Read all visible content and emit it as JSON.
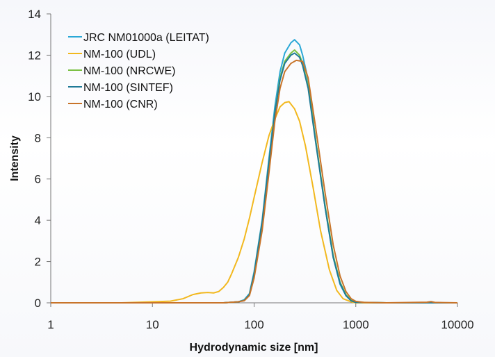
{
  "chart_data": {
    "type": "line",
    "xlabel": "Hydrodynamic size [nm]",
    "ylabel": "Intensity",
    "xscale": "log",
    "xlim": [
      1,
      10000
    ],
    "ylim": [
      0,
      14
    ],
    "x_ticks": [
      1,
      10,
      100,
      1000,
      10000
    ],
    "x_tick_labels": [
      "1",
      "10",
      "100",
      "1000",
      "10000"
    ],
    "y_ticks": [
      0,
      2,
      4,
      6,
      8,
      10,
      12,
      14
    ],
    "y_tick_labels": [
      "0",
      "2",
      "4",
      "6",
      "8",
      "10",
      "12",
      "14"
    ],
    "grid": false,
    "legend_position": "top-left",
    "series": [
      {
        "name": "JRC NM01000a (LEITAT)",
        "color": "#2aa8d6",
        "points": [
          [
            1,
            0
          ],
          [
            10,
            0
          ],
          [
            50,
            0
          ],
          [
            70,
            0.05
          ],
          [
            80,
            0.15
          ],
          [
            90,
            0.45
          ],
          [
            100,
            1.5
          ],
          [
            120,
            4.0
          ],
          [
            140,
            7.0
          ],
          [
            160,
            9.5
          ],
          [
            180,
            11.2
          ],
          [
            200,
            12.1
          ],
          [
            230,
            12.6
          ],
          [
            250,
            12.75
          ],
          [
            280,
            12.5
          ],
          [
            300,
            12.0
          ],
          [
            340,
            10.8
          ],
          [
            400,
            8.0
          ],
          [
            500,
            4.6
          ],
          [
            600,
            2.2
          ],
          [
            700,
            0.9
          ],
          [
            800,
            0.35
          ],
          [
            900,
            0.1
          ],
          [
            1000,
            0.02
          ],
          [
            2000,
            0
          ],
          [
            5000,
            0
          ],
          [
            5500,
            0.05
          ],
          [
            6000,
            0
          ],
          [
            10000,
            0
          ]
        ]
      },
      {
        "name": "NM-100 (UDL)",
        "color": "#f2b81e",
        "points": [
          [
            1,
            0
          ],
          [
            5,
            0
          ],
          [
            10,
            0.05
          ],
          [
            15,
            0.08
          ],
          [
            20,
            0.2
          ],
          [
            25,
            0.4
          ],
          [
            30,
            0.48
          ],
          [
            35,
            0.5
          ],
          [
            40,
            0.48
          ],
          [
            45,
            0.55
          ],
          [
            50,
            0.75
          ],
          [
            55,
            1.0
          ],
          [
            60,
            1.4
          ],
          [
            70,
            2.2
          ],
          [
            80,
            3.1
          ],
          [
            90,
            4.1
          ],
          [
            100,
            5.1
          ],
          [
            120,
            6.8
          ],
          [
            140,
            8.1
          ],
          [
            160,
            8.9
          ],
          [
            180,
            9.5
          ],
          [
            200,
            9.7
          ],
          [
            220,
            9.75
          ],
          [
            250,
            9.4
          ],
          [
            280,
            8.8
          ],
          [
            320,
            7.6
          ],
          [
            380,
            5.6
          ],
          [
            450,
            3.5
          ],
          [
            550,
            1.6
          ],
          [
            650,
            0.6
          ],
          [
            750,
            0.2
          ],
          [
            900,
            0.05
          ],
          [
            1000,
            0
          ],
          [
            10000,
            0
          ]
        ]
      },
      {
        "name": "NM-100 (NRCWE)",
        "color": "#7bc043",
        "points": [
          [
            1,
            0
          ],
          [
            10,
            0
          ],
          [
            50,
            0
          ],
          [
            70,
            0.05
          ],
          [
            80,
            0.12
          ],
          [
            90,
            0.4
          ],
          [
            100,
            1.4
          ],
          [
            120,
            3.9
          ],
          [
            140,
            6.8
          ],
          [
            160,
            9.2
          ],
          [
            180,
            10.9
          ],
          [
            200,
            11.7
          ],
          [
            230,
            12.1
          ],
          [
            250,
            12.25
          ],
          [
            280,
            12.0
          ],
          [
            300,
            11.6
          ],
          [
            340,
            10.5
          ],
          [
            400,
            8.0
          ],
          [
            500,
            4.7
          ],
          [
            600,
            2.3
          ],
          [
            700,
            1.0
          ],
          [
            800,
            0.4
          ],
          [
            900,
            0.12
          ],
          [
            1000,
            0.03
          ],
          [
            2000,
            0
          ],
          [
            10000,
            0
          ]
        ]
      },
      {
        "name": "NM-100 (SINTEF)",
        "color": "#1f7a96",
        "points": [
          [
            1,
            0
          ],
          [
            10,
            0
          ],
          [
            50,
            0
          ],
          [
            70,
            0.05
          ],
          [
            80,
            0.12
          ],
          [
            90,
            0.4
          ],
          [
            100,
            1.4
          ],
          [
            120,
            3.9
          ],
          [
            140,
            6.8
          ],
          [
            160,
            9.2
          ],
          [
            180,
            10.8
          ],
          [
            200,
            11.6
          ],
          [
            230,
            12.0
          ],
          [
            250,
            12.1
          ],
          [
            280,
            11.9
          ],
          [
            300,
            11.5
          ],
          [
            340,
            10.4
          ],
          [
            400,
            7.9
          ],
          [
            500,
            4.6
          ],
          [
            600,
            2.2
          ],
          [
            700,
            0.95
          ],
          [
            800,
            0.35
          ],
          [
            900,
            0.1
          ],
          [
            1000,
            0.02
          ],
          [
            2000,
            0
          ],
          [
            10000,
            0
          ]
        ]
      },
      {
        "name": "NM-100 (CNR)",
        "color": "#c8742a",
        "points": [
          [
            1,
            0
          ],
          [
            10,
            0
          ],
          [
            50,
            0
          ],
          [
            70,
            0.05
          ],
          [
            80,
            0.1
          ],
          [
            90,
            0.35
          ],
          [
            100,
            1.2
          ],
          [
            120,
            3.5
          ],
          [
            140,
            6.3
          ],
          [
            160,
            8.8
          ],
          [
            180,
            10.4
          ],
          [
            200,
            11.2
          ],
          [
            230,
            11.6
          ],
          [
            260,
            11.75
          ],
          [
            300,
            11.7
          ],
          [
            340,
            10.9
          ],
          [
            400,
            8.6
          ],
          [
            500,
            5.3
          ],
          [
            600,
            2.8
          ],
          [
            700,
            1.3
          ],
          [
            800,
            0.55
          ],
          [
            900,
            0.2
          ],
          [
            1000,
            0.07
          ],
          [
            1200,
            0.02
          ],
          [
            2000,
            0
          ],
          [
            5000,
            0.03
          ],
          [
            5500,
            0.06
          ],
          [
            6000,
            0.02
          ],
          [
            10000,
            0
          ]
        ]
      }
    ]
  }
}
